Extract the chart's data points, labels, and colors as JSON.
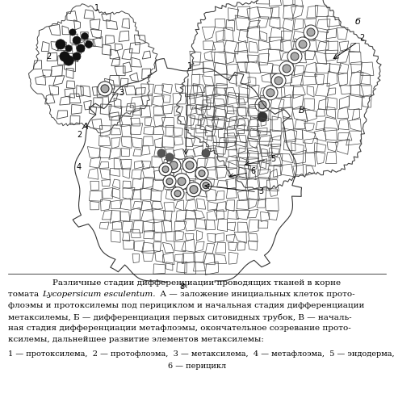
{
  "title": "Различные стадии дифференциации проводящих тканей в корне томата",
  "caption_line1": "Различные стадии дифференциации проводящих тканей в корне",
  "caption_line2": "томата ",
  "caption_italic": "Lycopersicum esculentum.",
  "caption_rest2": " А — заложение инициальных клеток прото-",
  "caption_line3": "флоэмы и протоксилемы под перициклом и начальная стадия дифференциации",
  "caption_line4": "метаксилемы, Б — дифференциация первых ситовидных трубок, В — началь-",
  "caption_line5": "ная стадия дифференциации метафлоэмы, окончательное созревание прото-",
  "caption_line6": "ксилемы, дальнейшее развитие элементов метаксилемы:",
  "caption_line7": "1 — протоксилема,  2 — протофлоэма,  3 — метаксилема,  4 — метафлоэма,  5 — эндодерма,",
  "caption_line8": "6 — перицикл",
  "bg_color": "#ffffff",
  "text_color": "#000000",
  "fig_width": 4.88,
  "fig_height": 5.14,
  "dpi": 100
}
